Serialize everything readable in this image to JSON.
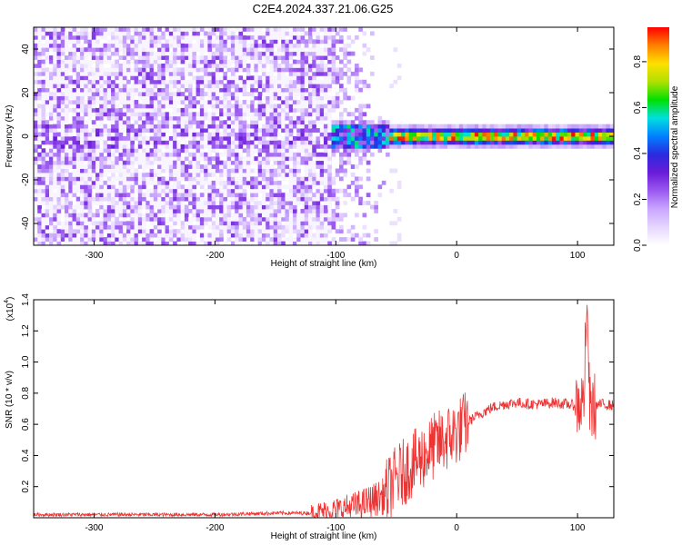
{
  "title": "C2E4.2024.337.21.06.G25",
  "chart_data": [
    {
      "type": "heatmap",
      "xlabel": "Height of straight line (km)",
      "ylabel": "Frequency (Hz)",
      "xlim": [
        -350,
        130
      ],
      "ylim": [
        -50,
        50
      ],
      "x_ticks": [
        -300,
        -200,
        -100,
        0,
        100
      ],
      "y_ticks": [
        -40,
        -20,
        0,
        20,
        40
      ],
      "colorbar": {
        "label": "Normalized spectral amplitude",
        "range": [
          0.0,
          0.95
        ],
        "ticks": [
          0.0,
          0.2,
          0.4,
          0.6,
          0.8
        ],
        "colors": [
          "#ffffff",
          "#e6d6ff",
          "#c9a6ff",
          "#9b59f0",
          "#6a1bd8",
          "#2a2adf",
          "#0080ff",
          "#00e0e0",
          "#00e000",
          "#b0e000",
          "#ffe000",
          "#ff8000",
          "#ff0000"
        ]
      },
      "features": {
        "noise_region_x": [
          -350,
          -100
        ],
        "sparse_region_x": [
          -100,
          -55
        ],
        "signal_band_hz": [
          -5,
          5
        ],
        "signal_center_hz": 0,
        "peak_amplitude": 0.95
      }
    },
    {
      "type": "line",
      "xlabel": "Height of straight line (km)",
      "ylabel": "SNR (10 * v/v)",
      "scale_label": "(x10",
      "scale_exp": "4",
      "scale_close": ")",
      "xlim": [
        -350,
        130
      ],
      "ylim": [
        0,
        1.4
      ],
      "x_ticks": [
        -300,
        -200,
        -100,
        0,
        100
      ],
      "y_ticks": [
        0.2,
        0.4,
        0.6,
        0.8,
        1.0,
        1.2,
        1.4
      ],
      "color": "#ee3333",
      "series": [
        {
          "x": [
            -350,
            -300,
            -250,
            -200,
            -150,
            -120,
            -100,
            -80,
            -60,
            -50,
            -40,
            -30,
            -20,
            -10,
            0,
            10,
            20,
            30,
            40,
            50,
            60,
            70,
            80,
            90,
            100,
            105,
            108,
            110,
            115,
            120,
            130
          ],
          "values": [
            0.02,
            0.02,
            0.02,
            0.02,
            0.03,
            0.03,
            0.05,
            0.08,
            0.14,
            0.25,
            0.32,
            0.38,
            0.45,
            0.5,
            0.55,
            0.62,
            0.67,
            0.71,
            0.73,
            0.74,
            0.73,
            0.73,
            0.74,
            0.73,
            0.72,
            0.75,
            1.4,
            0.7,
            0.72,
            0.73,
            0.72
          ]
        }
      ]
    }
  ]
}
